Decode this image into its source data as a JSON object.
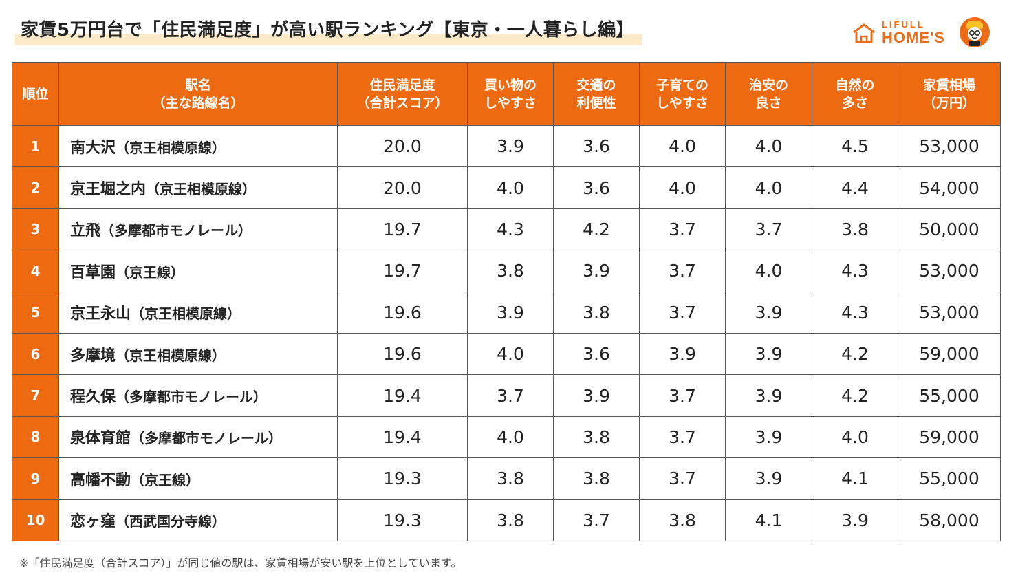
{
  "title": "家賃5万円台で「住民満足度」が高い駅ランキング【東京・一人暮らし編】",
  "logo": {
    "top": "LIFULL",
    "bottom": "HOME'S",
    "icon": "house-icon",
    "mascot": "mascot-icon",
    "brand_color": "#ed6d17"
  },
  "colors": {
    "header_bg": "#ed6a10",
    "header_text": "#ffffff"
  },
  "table": {
    "headers": [
      {
        "line1": "順位",
        "line2": ""
      },
      {
        "line1": "駅名",
        "line2": "（主な路線名）"
      },
      {
        "line1": "住民満足度",
        "line2": "（合計スコア）"
      },
      {
        "line1": "買い物の",
        "line2": "しやすさ"
      },
      {
        "line1": "交通の",
        "line2": "利便性"
      },
      {
        "line1": "子育ての",
        "line2": "しやすさ"
      },
      {
        "line1": "治安の",
        "line2": "良さ"
      },
      {
        "line1": "自然の",
        "line2": "多さ"
      },
      {
        "line1": "家賃相場",
        "line2": "（万円）"
      }
    ],
    "rows": [
      {
        "rank": "1",
        "station": "南大沢",
        "line": "（京王相模原線）",
        "total": "20.0",
        "shopping": "3.9",
        "transport": "3.6",
        "childcare": "4.0",
        "safety": "4.0",
        "nature": "4.5",
        "rent": "53,000"
      },
      {
        "rank": "2",
        "station": "京王堀之内",
        "line": "（京王相模原線）",
        "total": "20.0",
        "shopping": "4.0",
        "transport": "3.6",
        "childcare": "4.0",
        "safety": "4.0",
        "nature": "4.4",
        "rent": "54,000"
      },
      {
        "rank": "3",
        "station": "立飛",
        "line": "（多摩都市モノレール）",
        "total": "19.7",
        "shopping": "4.3",
        "transport": "4.2",
        "childcare": "3.7",
        "safety": "3.7",
        "nature": "3.8",
        "rent": "50,000"
      },
      {
        "rank": "4",
        "station": "百草園",
        "line": "（京王線）",
        "total": "19.7",
        "shopping": "3.8",
        "transport": "3.9",
        "childcare": "3.7",
        "safety": "4.0",
        "nature": "4.3",
        "rent": "53,000"
      },
      {
        "rank": "5",
        "station": "京王永山",
        "line": "（京王相模原線）",
        "total": "19.6",
        "shopping": "3.9",
        "transport": "3.8",
        "childcare": "3.7",
        "safety": "3.9",
        "nature": "4.3",
        "rent": "53,000"
      },
      {
        "rank": "6",
        "station": "多摩境",
        "line": "（京王相模原線）",
        "total": "19.6",
        "shopping": "4.0",
        "transport": "3.6",
        "childcare": "3.9",
        "safety": "3.9",
        "nature": "4.2",
        "rent": "59,000"
      },
      {
        "rank": "7",
        "station": "程久保",
        "line": "（多摩都市モノレール）",
        "total": "19.4",
        "shopping": "3.7",
        "transport": "3.9",
        "childcare": "3.7",
        "safety": "3.9",
        "nature": "4.2",
        "rent": "55,000"
      },
      {
        "rank": "8",
        "station": "泉体育館",
        "line": "（多摩都市モノレール）",
        "total": "19.4",
        "shopping": "4.0",
        "transport": "3.8",
        "childcare": "3.7",
        "safety": "3.9",
        "nature": "4.0",
        "rent": "59,000"
      },
      {
        "rank": "9",
        "station": "高幡不動",
        "line": "（京王線）",
        "total": "19.3",
        "shopping": "3.8",
        "transport": "3.8",
        "childcare": "3.7",
        "safety": "3.9",
        "nature": "4.1",
        "rent": "55,000"
      },
      {
        "rank": "10",
        "station": "恋ヶ窪",
        "line": "（西武国分寺線）",
        "total": "19.3",
        "shopping": "3.8",
        "transport": "3.7",
        "childcare": "3.8",
        "safety": "4.1",
        "nature": "3.9",
        "rent": "58,000"
      }
    ]
  },
  "footnote": "※「住民満足度（合計スコア）」が同じ値の駅は、家賃相場が安い駅を上位としています。"
}
